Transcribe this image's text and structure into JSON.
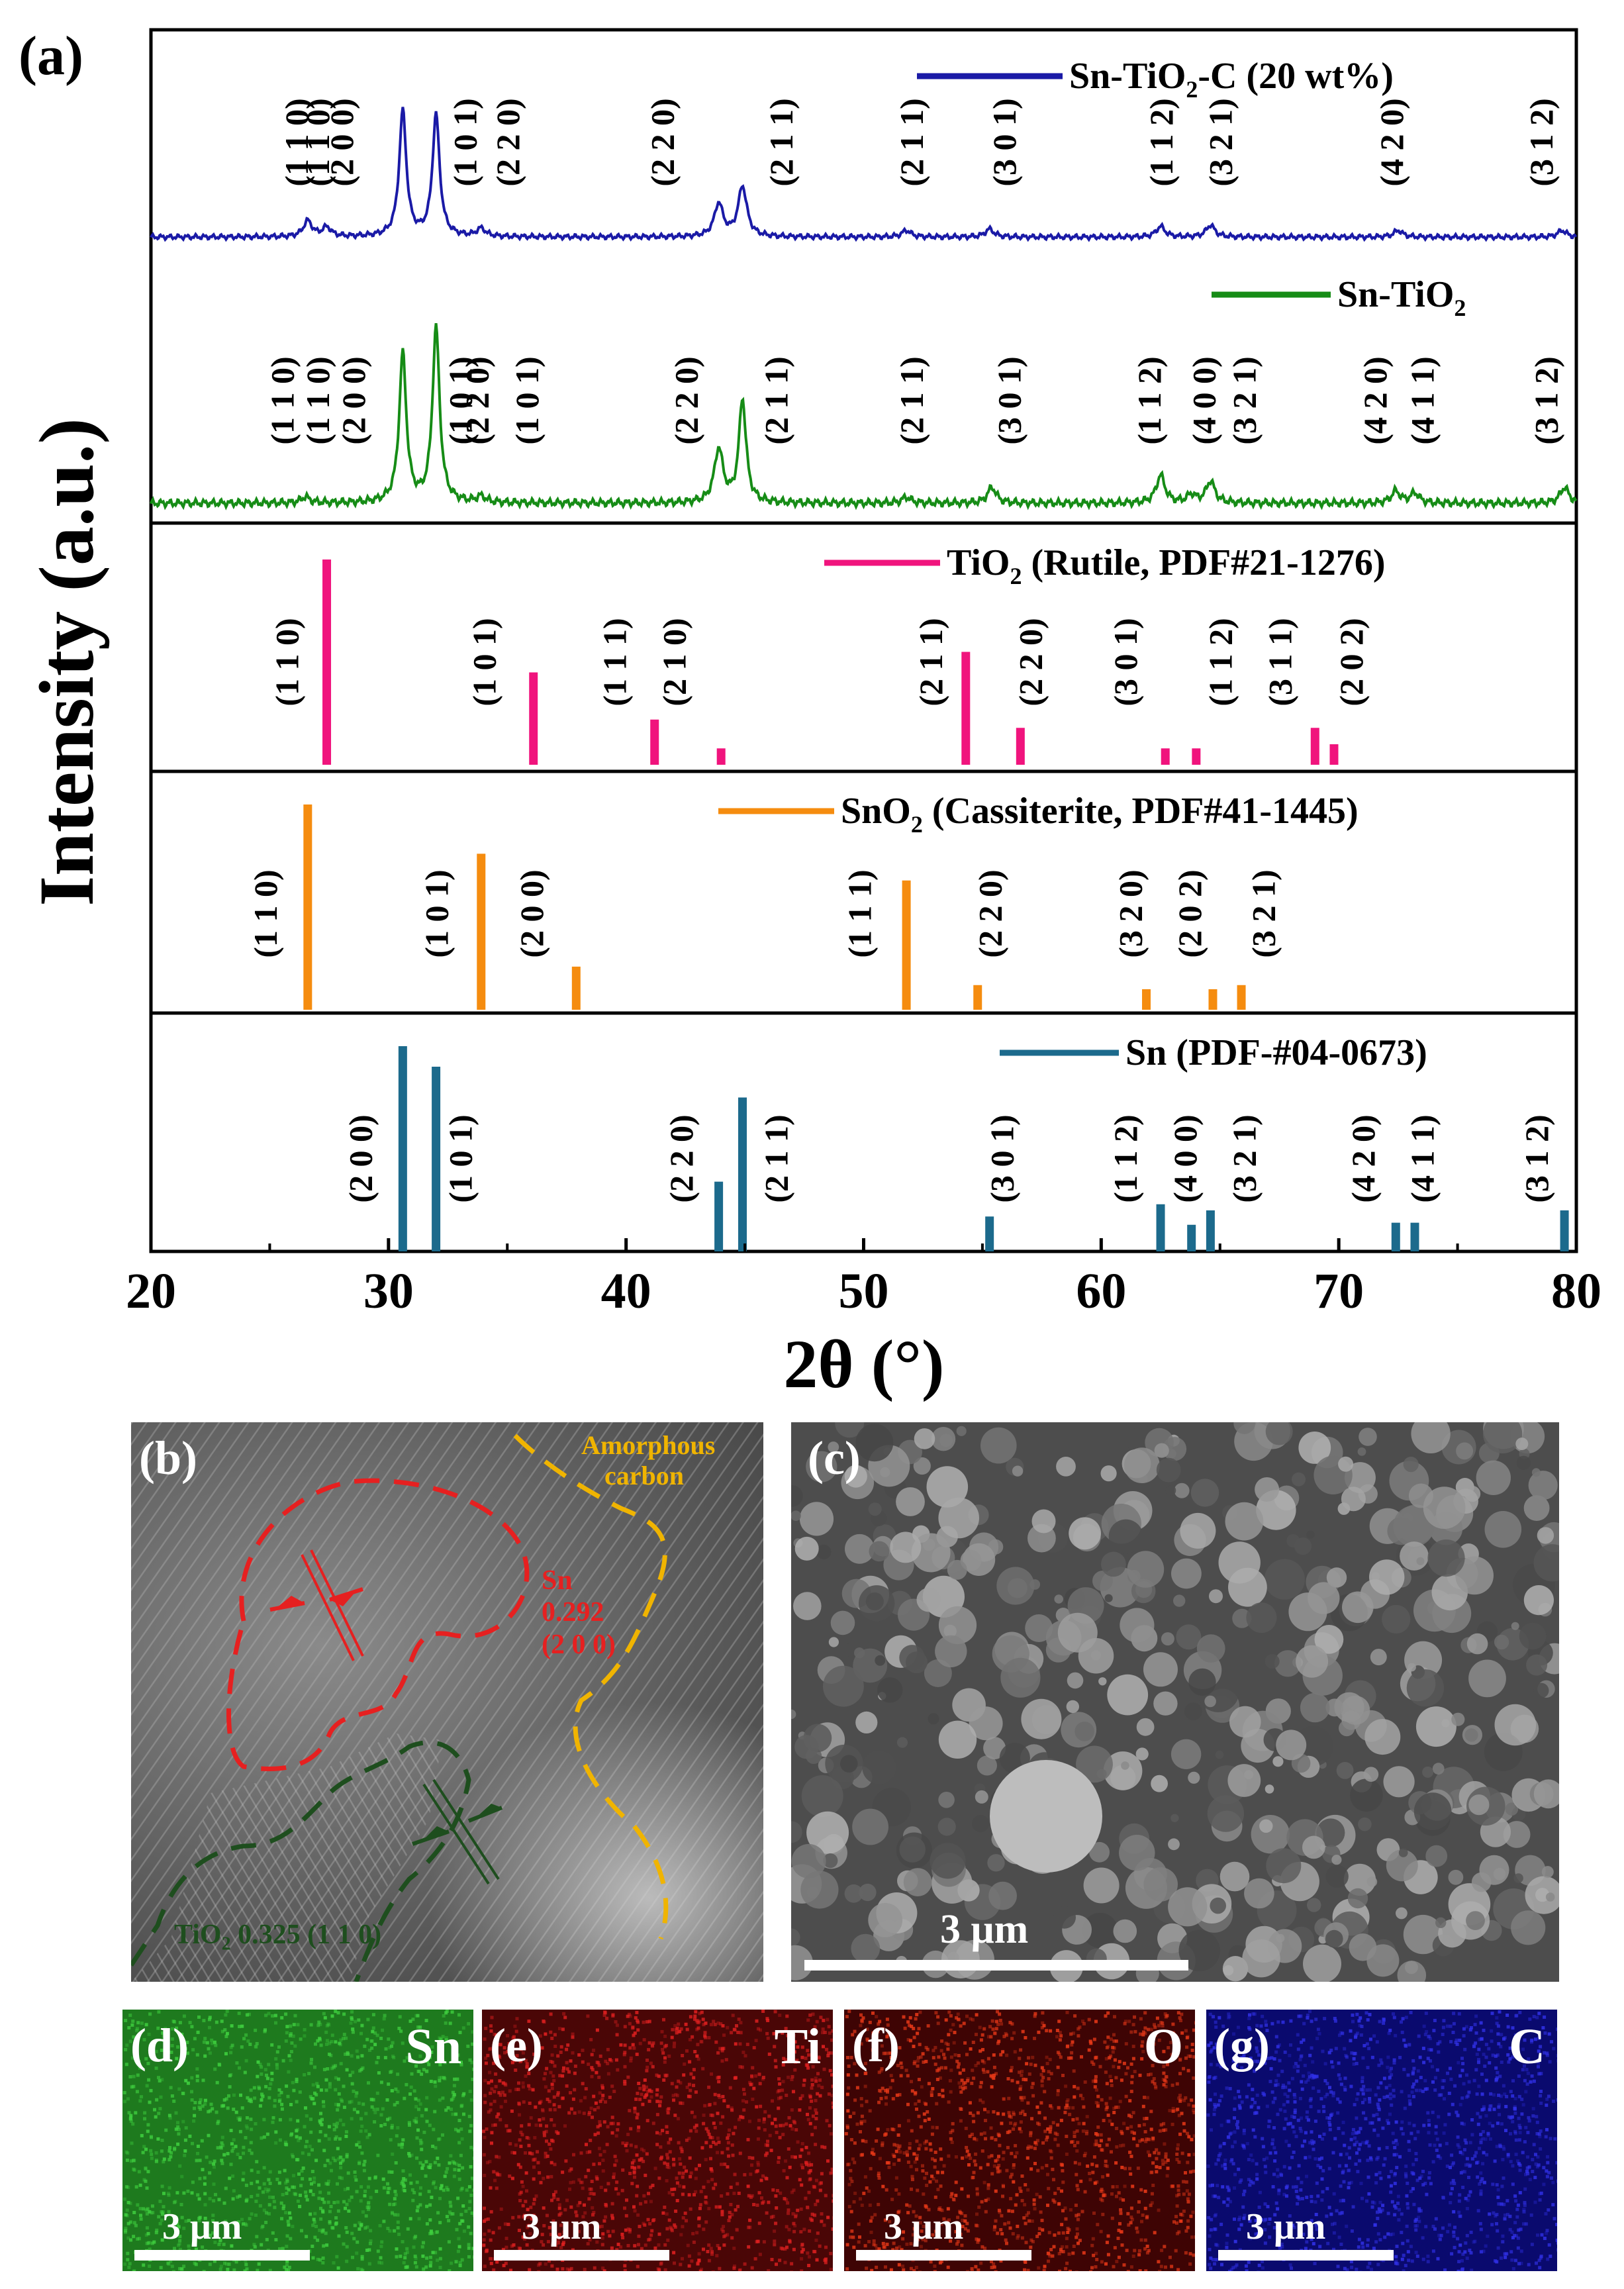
{
  "figure": {
    "label_a": "(a)",
    "y_axis_label": "Intensity (a.u.)",
    "x_axis_label": "2θ (°)"
  },
  "chart_data": {
    "type": "line",
    "title": "",
    "xlabel": "2θ (°)",
    "ylabel": "Intensity (a.u.)",
    "xlim": [
      20,
      80
    ],
    "xticks": [
      20,
      30,
      40,
      50,
      60,
      70,
      80
    ],
    "grid": false,
    "legend_placement": "top-right of each panel",
    "colors": {
      "blue": "#1a1aa6",
      "green": "#168c16",
      "pink": "#f0147d",
      "orange": "#f58c0f",
      "teal": "#1c6a8c"
    },
    "series": [
      {
        "name": "Sn-TiO2-C (20 wt%)",
        "legend_main": "Sn-TiO",
        "legend_sub": "2",
        "legend_tail": "-C (20 wt%)",
        "kind": "profile",
        "peaks": [
          {
            "x": 26.6,
            "h": 0.12
          },
          {
            "x": 27.4,
            "h": 0.07
          },
          {
            "x": 30.6,
            "h": 0.95
          },
          {
            "x": 32.0,
            "h": 0.92
          },
          {
            "x": 33.9,
            "h": 0.06
          },
          {
            "x": 43.9,
            "h": 0.25
          },
          {
            "x": 44.9,
            "h": 0.38
          },
          {
            "x": 51.8,
            "h": 0.05
          },
          {
            "x": 55.3,
            "h": 0.06
          },
          {
            "x": 62.5,
            "h": 0.08
          },
          {
            "x": 64.6,
            "h": 0.09
          },
          {
            "x": 72.5,
            "h": 0.05
          },
          {
            "x": 79.4,
            "h": 0.05
          }
        ],
        "labels": [
          {
            "x": 26.6,
            "text": "(1 1 0)"
          },
          {
            "x": 27.5,
            "text": "(1 1 0)"
          },
          {
            "x": 28.5,
            "text": "(2 0 0)"
          },
          {
            "x": 33.7,
            "text": "(1 0 1)"
          },
          {
            "x": 35.5,
            "text": "(2 2 0)"
          },
          {
            "x": 42.0,
            "text": "(2 2 0)"
          },
          {
            "x": 47.0,
            "text": "(2 1 1)"
          },
          {
            "x": 52.5,
            "text": "(2 1 1)"
          },
          {
            "x": 56.4,
            "text": "(3 0 1)"
          },
          {
            "x": 63.0,
            "text": "(1 1 2)"
          },
          {
            "x": 65.5,
            "text": "(3 2 1)"
          },
          {
            "x": 72.7,
            "text": "(4 2 0)"
          },
          {
            "x": 79.0,
            "text": "(3 1 2)"
          }
        ]
      },
      {
        "name": "Sn-TiO2",
        "legend_main": "Sn-TiO",
        "legend_sub": "2",
        "legend_tail": "",
        "kind": "profile",
        "peaks": [
          {
            "x": 26.5,
            "h": 0.03
          },
          {
            "x": 30.6,
            "h": 0.75
          },
          {
            "x": 32.0,
            "h": 0.88
          },
          {
            "x": 33.9,
            "h": 0.03
          },
          {
            "x": 43.9,
            "h": 0.27
          },
          {
            "x": 44.9,
            "h": 0.52
          },
          {
            "x": 51.8,
            "h": 0.03
          },
          {
            "x": 55.4,
            "h": 0.08
          },
          {
            "x": 62.5,
            "h": 0.14
          },
          {
            "x": 63.8,
            "h": 0.04
          },
          {
            "x": 64.6,
            "h": 0.11
          },
          {
            "x": 72.4,
            "h": 0.06
          },
          {
            "x": 73.2,
            "h": 0.05
          },
          {
            "x": 79.5,
            "h": 0.08
          }
        ],
        "labels": [
          {
            "x": 26.0,
            "text": "(1 1 0)"
          },
          {
            "x": 27.5,
            "text": "(1 1 0)"
          },
          {
            "x": 29.0,
            "text": "(2 0 0)"
          },
          {
            "x": 33.5,
            "text": "(1 0 1)"
          },
          {
            "x": 34.2,
            "text": "(2 2 0)"
          },
          {
            "x": 36.3,
            "text": "(1 0 1)"
          },
          {
            "x": 43.0,
            "text": "(2 2 0)"
          },
          {
            "x": 46.8,
            "text": "(2 1 1)"
          },
          {
            "x": 52.5,
            "text": "(2 1 1)"
          },
          {
            "x": 56.6,
            "text": "(3 0 1)"
          },
          {
            "x": 62.5,
            "text": "(1 1 2)"
          },
          {
            "x": 64.8,
            "text": "(4 0 0)"
          },
          {
            "x": 66.5,
            "text": "(3 2 1)"
          },
          {
            "x": 72.0,
            "text": "(4 2 0)"
          },
          {
            "x": 74.0,
            "text": "(4 1 1)"
          },
          {
            "x": 79.2,
            "text": "(3 1 2)"
          }
        ]
      },
      {
        "name": "TiO2 (Rutile, PDF#21-1276)",
        "legend_main": "TiO",
        "legend_sub": "2",
        "legend_tail": " (Rutile, PDF#21-1276)",
        "kind": "sticks",
        "sticks": [
          {
            "x": 27.4,
            "h": 1.0
          },
          {
            "x": 36.1,
            "h": 0.45
          },
          {
            "x": 41.2,
            "h": 0.22
          },
          {
            "x": 44.0,
            "h": 0.08
          },
          {
            "x": 54.3,
            "h": 0.55
          },
          {
            "x": 56.6,
            "h": 0.18
          },
          {
            "x": 62.7,
            "h": 0.08
          },
          {
            "x": 64.0,
            "h": 0.08
          },
          {
            "x": 69.0,
            "h": 0.18
          },
          {
            "x": 69.8,
            "h": 0.1
          }
        ],
        "labels": [
          {
            "x": 26.2,
            "text": "(1 1 0)"
          },
          {
            "x": 34.5,
            "text": "(1 0 1)"
          },
          {
            "x": 40.0,
            "text": "(1 1 1)"
          },
          {
            "x": 42.5,
            "text": "(2 1 0)"
          },
          {
            "x": 53.3,
            "text": "(2 1 1)"
          },
          {
            "x": 57.5,
            "text": "(2 2 0)"
          },
          {
            "x": 61.5,
            "text": "(3 0 1)"
          },
          {
            "x": 65.5,
            "text": "(1 1 2)"
          },
          {
            "x": 68.0,
            "text": "(3 1 1)"
          },
          {
            "x": 71.0,
            "text": "(2 0 2)"
          }
        ]
      },
      {
        "name": "SnO2 (Cassiterite, PDF#41-1445)",
        "legend_main": "SnO",
        "legend_sub": "2",
        "legend_tail": " (Cassiterite, PDF#41-1445)",
        "kind": "sticks",
        "sticks": [
          {
            "x": 26.6,
            "h": 1.0
          },
          {
            "x": 33.9,
            "h": 0.76
          },
          {
            "x": 37.9,
            "h": 0.21
          },
          {
            "x": 51.8,
            "h": 0.63
          },
          {
            "x": 54.8,
            "h": 0.12
          },
          {
            "x": 61.9,
            "h": 0.1
          },
          {
            "x": 64.7,
            "h": 0.1
          },
          {
            "x": 65.9,
            "h": 0.12
          }
        ],
        "labels": [
          {
            "x": 25.3,
            "text": "(1 1 0)"
          },
          {
            "x": 32.5,
            "text": "(1 0 1)"
          },
          {
            "x": 36.5,
            "text": "(2 0 0)"
          },
          {
            "x": 50.3,
            "text": "(1 1 1)"
          },
          {
            "x": 55.8,
            "text": "(2 2 0)"
          },
          {
            "x": 61.7,
            "text": "(3 2 0)"
          },
          {
            "x": 64.2,
            "text": "(2 0 2)"
          },
          {
            "x": 67.3,
            "text": "(3 2 1)"
          }
        ]
      },
      {
        "name": "Sn (PDF-#04-0673)",
        "legend_main": "Sn (PDF-#04-0673)",
        "legend_sub": "",
        "legend_tail": "",
        "kind": "sticks",
        "sticks": [
          {
            "x": 30.6,
            "h": 1.0
          },
          {
            "x": 32.0,
            "h": 0.9
          },
          {
            "x": 43.9,
            "h": 0.34
          },
          {
            "x": 44.9,
            "h": 0.75
          },
          {
            "x": 55.3,
            "h": 0.17
          },
          {
            "x": 62.5,
            "h": 0.23
          },
          {
            "x": 63.8,
            "h": 0.13
          },
          {
            "x": 64.6,
            "h": 0.2
          },
          {
            "x": 72.4,
            "h": 0.14
          },
          {
            "x": 73.2,
            "h": 0.14
          },
          {
            "x": 79.5,
            "h": 0.2
          }
        ],
        "labels": [
          {
            "x": 29.3,
            "text": "(2 0 0)"
          },
          {
            "x": 33.5,
            "text": "(1 0 1)"
          },
          {
            "x": 42.8,
            "text": "(2 2 0)"
          },
          {
            "x": 46.8,
            "text": "(2 1 1)"
          },
          {
            "x": 56.3,
            "text": "(3 0 1)"
          },
          {
            "x": 61.5,
            "text": "(1 1 2)"
          },
          {
            "x": 64.0,
            "text": "(4 0 0)"
          },
          {
            "x": 66.5,
            "text": "(3 2 1)"
          },
          {
            "x": 71.5,
            "text": "(4 2 0)"
          },
          {
            "x": 74.0,
            "text": "(4 1 1)"
          },
          {
            "x": 78.8,
            "text": "(3 1 2)"
          }
        ]
      }
    ]
  },
  "panel_b": {
    "label": "(b)",
    "amorphous": "Amorphous carbon",
    "sn_note_1": "Sn",
    "sn_note_2": "0.292",
    "sn_note_3": "(2 0 0)",
    "tio2_main": "TiO",
    "tio2_sub": "2",
    "tio2_tail": " 0.325 (1 1 0)"
  },
  "panel_c": {
    "label": "(c)",
    "scale": "3 μm"
  },
  "maps": [
    {
      "label": "(d)",
      "element": "Sn",
      "scale": "3 μm",
      "color": "#29a629"
    },
    {
      "label": "(e)",
      "element": "Ti",
      "scale": "3 μm",
      "color": "#c81818"
    },
    {
      "label": "(f)",
      "element": "O",
      "scale": "3 μm",
      "color": "#c81818"
    },
    {
      "label": "(g)",
      "element": "C",
      "scale": "3 μm",
      "color": "#1f1fc8"
    }
  ]
}
